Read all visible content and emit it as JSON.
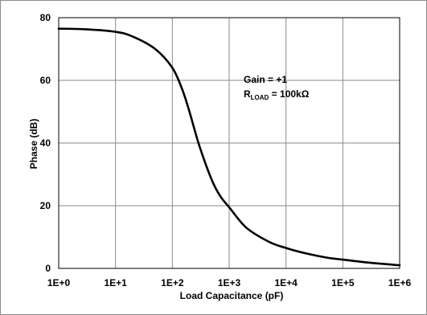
{
  "chart_data": {
    "type": "line",
    "title": "",
    "xlabel": "Load Capacitance (pF)",
    "ylabel": "Phase (dB)",
    "x_scale": "log",
    "xlim": [
      1,
      1000000
    ],
    "ylim": [
      0,
      80
    ],
    "grid": true,
    "x_tick_labels": [
      "1E+0",
      "1E+1",
      "1E+2",
      "1E+3",
      "1E+4",
      "1E+5",
      "1E+6"
    ],
    "y_tick_labels": [
      "0",
      "20",
      "40",
      "60",
      "80"
    ],
    "annotations": {
      "gain": "Gain = +1",
      "r_main": "R",
      "r_sub": "LOAD",
      "r_value": " = 100kΩ"
    },
    "series": [
      {
        "x": [
          1,
          3,
          10,
          20,
          50,
          100,
          150,
          200,
          300,
          500,
          700,
          1000,
          2000,
          5000,
          10000,
          20000,
          50000,
          100000,
          300000,
          1000000
        ],
        "y": [
          76.5,
          76.3,
          75.5,
          74,
          70,
          64,
          57,
          50,
          39,
          28,
          23,
          19.5,
          13,
          8.5,
          6.5,
          5,
          3.5,
          2.8,
          1.8,
          1.0
        ]
      }
    ]
  }
}
